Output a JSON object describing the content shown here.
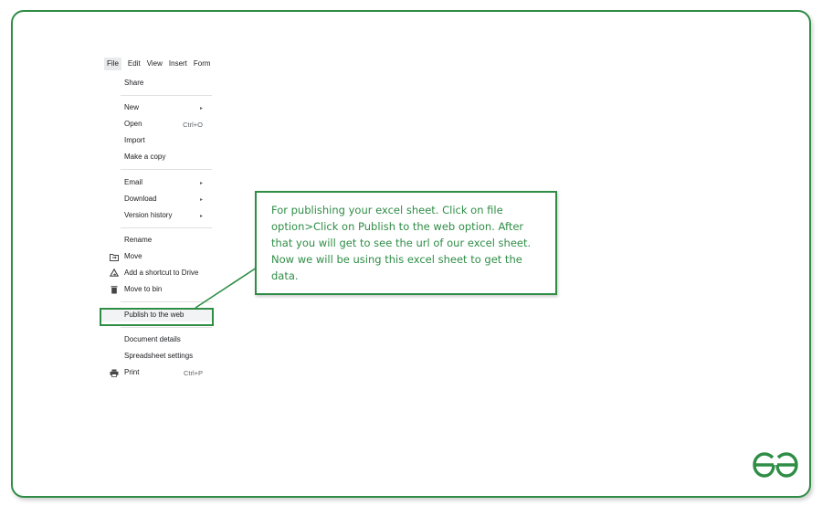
{
  "menubar": {
    "items": [
      "File",
      "Edit",
      "View",
      "Insert",
      "Form"
    ]
  },
  "file_menu": {
    "share": "Share",
    "new": "New",
    "open": "Open",
    "open_shortcut": "Ctrl+O",
    "import": "Import",
    "make_copy": "Make a copy",
    "email": "Email",
    "download": "Download",
    "version_history": "Version history",
    "rename": "Rename",
    "move": "Move",
    "add_shortcut": "Add a shortcut to Drive",
    "move_to_bin": "Move to bin",
    "publish": "Publish to the web",
    "document_details": "Document details",
    "spreadsheet_settings": "Spreadsheet settings",
    "print": "Print",
    "print_shortcut": "Ctrl+P"
  },
  "icons": {
    "submenu_arrow": "▸",
    "move": "folder-move-icon",
    "add_shortcut": "drive-shortcut-icon",
    "move_to_bin": "trash-icon",
    "print": "printer-icon"
  },
  "callout": {
    "text": "For publishing your excel sheet. Click on file option>Click on Publish to the web option. After that you will get to see the url of our excel sheet. Now we will be using this excel sheet to get the data."
  },
  "colors": {
    "accent": "#2f8d46"
  }
}
